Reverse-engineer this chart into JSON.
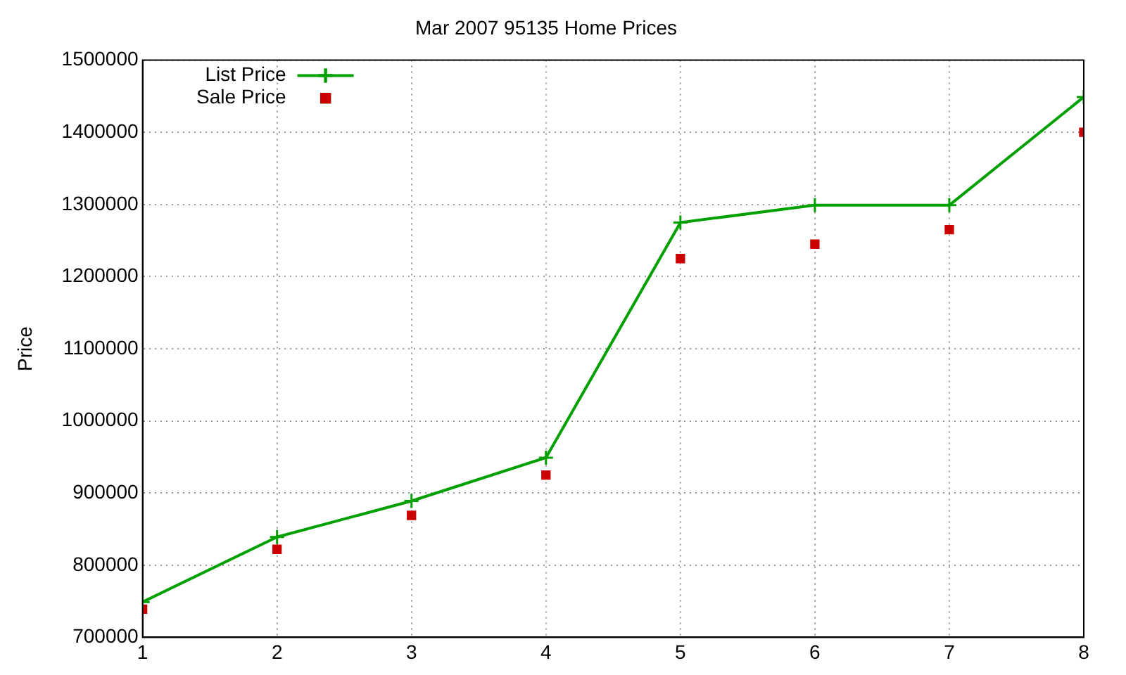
{
  "chart_data": {
    "type": "line",
    "title": "Mar 2007 95135 Home Prices",
    "ylabel": "Price",
    "x": [
      1,
      2,
      3,
      4,
      5,
      6,
      7,
      8
    ],
    "series": [
      {
        "name": "List Price",
        "type": "line",
        "marker": "cross",
        "color": "#00a000",
        "values": [
          749000,
          839000,
          889000,
          949000,
          1275000,
          1299000,
          1299000,
          1449000
        ]
      },
      {
        "name": "Sale Price",
        "type": "scatter",
        "marker": "square",
        "color": "#cc0000",
        "values": [
          739000,
          822000,
          869000,
          925000,
          1225000,
          1245000,
          1265000,
          1400000
        ]
      }
    ],
    "xlim": [
      1,
      8
    ],
    "xticks": [
      1,
      2,
      3,
      4,
      5,
      6,
      7,
      8
    ],
    "ylim": [
      700000,
      1500000
    ],
    "yticks": [
      700000,
      800000,
      900000,
      1000000,
      1100000,
      1200000,
      1300000,
      1400000,
      1500000
    ],
    "grid": true,
    "legend": "top left"
  }
}
